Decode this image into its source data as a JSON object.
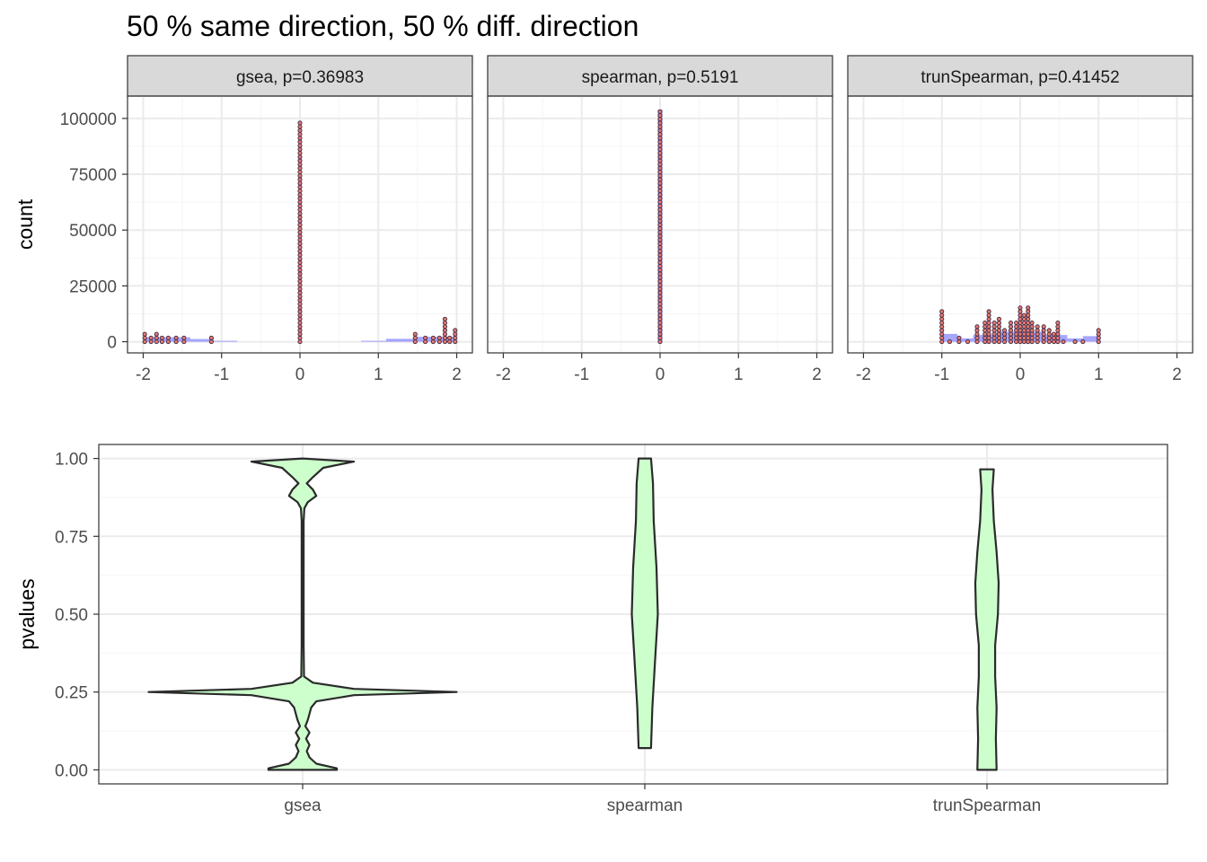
{
  "title": "50 % same direction, 50 % diff. direction",
  "colors": {
    "dot_fill": "#e8796b",
    "dot_stroke": "#3a2a4a",
    "hist_fill": "#6b6bff",
    "violin_fill": "#ccffcc",
    "violin_stroke": "#2b2b2b",
    "strip_bg": "#d9d9d9",
    "grid_major": "#ebebeb",
    "grid_minor": "#f5f5f5"
  },
  "chart_data": [
    {
      "type": "histogram",
      "facet_type": "dotplot-histogram",
      "ylabel": "count",
      "xlim": [
        -2.2,
        2.2
      ],
      "ylim": [
        -5000,
        110000
      ],
      "x_ticks": [
        -2,
        -1,
        0,
        1,
        2
      ],
      "y_ticks": [
        0,
        25000,
        50000,
        75000,
        100000
      ],
      "y_tick_labels": [
        "0",
        "25000",
        "50000",
        "75000",
        "100000"
      ],
      "x_tick_labels": [
        "-2",
        "-1",
        "0",
        "1",
        "2"
      ],
      "panels": [
        {
          "label": "gsea, p=0.36983",
          "dots": [
            {
              "x": -1.98,
              "y": 4500
            },
            {
              "x": -1.9,
              "y": 2500
            },
            {
              "x": -1.83,
              "y": 4000
            },
            {
              "x": -1.76,
              "y": 3000
            },
            {
              "x": -1.68,
              "y": 2500
            },
            {
              "x": -1.58,
              "y": 2500
            },
            {
              "x": -1.48,
              "y": 2500
            },
            {
              "x": -1.13,
              "y": 3000
            },
            {
              "x": 0,
              "y": 98000
            },
            {
              "x": 1.47,
              "y": 4500
            },
            {
              "x": 1.6,
              "y": 2500
            },
            {
              "x": 1.7,
              "y": 2500
            },
            {
              "x": 1.78,
              "y": 3000
            },
            {
              "x": 1.85,
              "y": 11000
            },
            {
              "x": 1.91,
              "y": 3000
            },
            {
              "x": 1.98,
              "y": 6500
            }
          ],
          "hist": [
            {
              "x0": -2.0,
              "x1": -1.4,
              "y": 2000
            },
            {
              "x0": -1.4,
              "y": 1200,
              "x1": -1.1
            },
            {
              "x0": -1.1,
              "x1": -0.8,
              "y": 400
            },
            {
              "x0": 0.78,
              "x1": 1.1,
              "y": 400
            },
            {
              "x0": 1.1,
              "x1": 1.45,
              "y": 1300
            },
            {
              "x0": 1.45,
              "x1": 2.0,
              "y": 2200
            }
          ]
        },
        {
          "label": "spearman, p=0.5191",
          "dots": [
            {
              "x": 0,
              "y": 104000
            }
          ],
          "hist": [
            {
              "x0": -0.03,
              "x1": 0.03,
              "y": 104000
            }
          ]
        },
        {
          "label": "trunSpearman, p=0.41452",
          "dots": [
            {
              "x": -1.0,
              "y": 14500
            },
            {
              "x": -0.9,
              "y": 1500
            },
            {
              "x": -0.78,
              "y": 3000
            },
            {
              "x": -0.67,
              "y": 1500
            },
            {
              "x": -0.55,
              "y": 7000
            },
            {
              "x": -0.45,
              "y": 9500
            },
            {
              "x": -0.4,
              "y": 14500
            },
            {
              "x": -0.33,
              "y": 8500
            },
            {
              "x": -0.27,
              "y": 11000
            },
            {
              "x": -0.2,
              "y": 5500
            },
            {
              "x": -0.12,
              "y": 8500
            },
            {
              "x": -0.05,
              "y": 9000
            },
            {
              "x": 0,
              "y": 16000
            },
            {
              "x": 0.05,
              "y": 12000
            },
            {
              "x": 0.1,
              "y": 16000
            },
            {
              "x": 0.15,
              "y": 9500
            },
            {
              "x": 0.22,
              "y": 7000
            },
            {
              "x": 0.3,
              "y": 7000
            },
            {
              "x": 0.37,
              "y": 6500
            },
            {
              "x": 0.43,
              "y": 3500
            },
            {
              "x": 0.48,
              "y": 9000
            },
            {
              "x": 0.55,
              "y": 1500
            },
            {
              "x": 0.7,
              "y": 1500
            },
            {
              "x": 0.8,
              "y": 1500
            },
            {
              "x": 1.0,
              "y": 6000
            }
          ],
          "hist": [
            {
              "x0": -1.0,
              "x1": -0.8,
              "y": 3500
            },
            {
              "x0": -0.8,
              "x1": -0.6,
              "y": 1500
            },
            {
              "x0": -0.6,
              "x1": -0.3,
              "y": 3000
            },
            {
              "x0": -0.3,
              "x1": 0.0,
              "y": 4500
            },
            {
              "x0": 0.0,
              "x1": 0.3,
              "y": 4500
            },
            {
              "x0": 0.3,
              "x1": 0.6,
              "y": 3000
            },
            {
              "x0": 0.6,
              "x1": 0.8,
              "y": 1500
            },
            {
              "x0": 0.8,
              "x1": 1.0,
              "y": 2500
            }
          ]
        }
      ]
    },
    {
      "type": "violin",
      "ylabel": "pvalues",
      "xlabel": "",
      "categories": [
        "gsea",
        "spearman",
        "trunSpearman"
      ],
      "ylim": [
        -0.045,
        1.045
      ],
      "y_ticks": [
        0,
        0.25,
        0.5,
        0.75,
        1.0
      ],
      "y_tick_labels": [
        "0.00",
        "0.25",
        "0.50",
        "0.75",
        "1.00"
      ],
      "series": [
        {
          "name": "gsea",
          "half_widths": [
            [
              0.0,
              0.1
            ],
            [
              0.005,
              0.1
            ],
            [
              0.02,
              0.04
            ],
            [
              0.04,
              0.02
            ],
            [
              0.06,
              0.012
            ],
            [
              0.08,
              0.02
            ],
            [
              0.1,
              0.01
            ],
            [
              0.12,
              0.02
            ],
            [
              0.14,
              0.008
            ],
            [
              0.16,
              0.015
            ],
            [
              0.18,
              0.02
            ],
            [
              0.2,
              0.025
            ],
            [
              0.22,
              0.04
            ],
            [
              0.24,
              0.15
            ],
            [
              0.25,
              0.45
            ],
            [
              0.26,
              0.15
            ],
            [
              0.28,
              0.03
            ],
            [
              0.3,
              0.004
            ],
            [
              0.4,
              0.003
            ],
            [
              0.6,
              0.003
            ],
            [
              0.8,
              0.003
            ],
            [
              0.84,
              0.005
            ],
            [
              0.86,
              0.015
            ],
            [
              0.88,
              0.04
            ],
            [
              0.9,
              0.03
            ],
            [
              0.92,
              0.012
            ],
            [
              0.94,
              0.03
            ],
            [
              0.97,
              0.06
            ],
            [
              0.99,
              0.15
            ],
            [
              1.0,
              0.0
            ]
          ]
        },
        {
          "name": "spearman",
          "half_widths": [
            [
              0.07,
              0.018
            ],
            [
              0.2,
              0.022
            ],
            [
              0.35,
              0.03
            ],
            [
              0.5,
              0.038
            ],
            [
              0.65,
              0.034
            ],
            [
              0.8,
              0.026
            ],
            [
              0.92,
              0.024
            ],
            [
              1.0,
              0.018
            ]
          ]
        },
        {
          "name": "trunSpearman",
          "half_widths": [
            [
              0.0,
              0.028
            ],
            [
              0.1,
              0.026
            ],
            [
              0.2,
              0.028
            ],
            [
              0.3,
              0.024
            ],
            [
              0.4,
              0.024
            ],
            [
              0.5,
              0.032
            ],
            [
              0.6,
              0.034
            ],
            [
              0.7,
              0.028
            ],
            [
              0.8,
              0.02
            ],
            [
              0.9,
              0.016
            ],
            [
              0.965,
              0.02
            ]
          ]
        }
      ]
    }
  ]
}
